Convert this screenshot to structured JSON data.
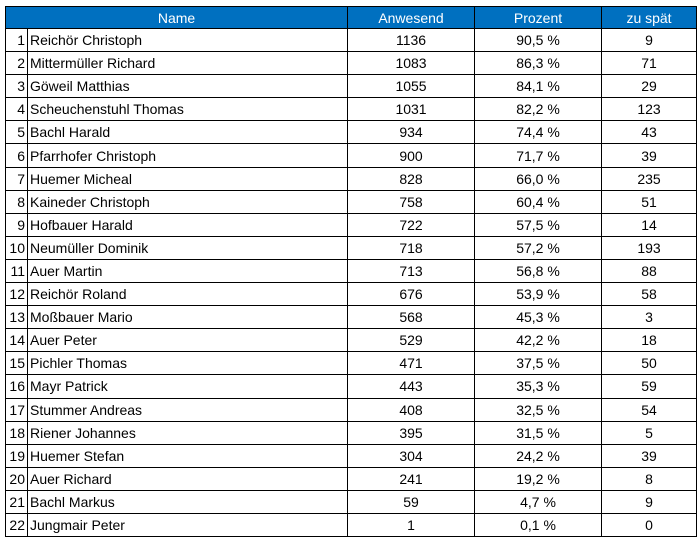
{
  "table": {
    "headers": [
      "Name",
      "Anwesend",
      "Prozent",
      "zu spät"
    ],
    "rows": [
      {
        "rank": "1",
        "name": "Reichör Christoph",
        "present": "1136",
        "percent": "90,5 %",
        "late": "9"
      },
      {
        "rank": "2",
        "name": "Mittermüller Richard",
        "present": "1083",
        "percent": "86,3 %",
        "late": "71"
      },
      {
        "rank": "3",
        "name": "Göweil Matthias",
        "present": "1055",
        "percent": "84,1 %",
        "late": "29"
      },
      {
        "rank": "4",
        "name": "Scheuchenstuhl Thomas",
        "present": "1031",
        "percent": "82,2 %",
        "late": "123"
      },
      {
        "rank": "5",
        "name": "Bachl Harald",
        "present": "934",
        "percent": "74,4 %",
        "late": "43"
      },
      {
        "rank": "6",
        "name": "Pfarrhofer Christoph",
        "present": "900",
        "percent": "71,7 %",
        "late": "39"
      },
      {
        "rank": "7",
        "name": "Huemer Micheal",
        "present": "828",
        "percent": "66,0 %",
        "late": "235"
      },
      {
        "rank": "8",
        "name": "Kaineder Christoph",
        "present": "758",
        "percent": "60,4 %",
        "late": "51"
      },
      {
        "rank": "9",
        "name": "Hofbauer Harald",
        "present": "722",
        "percent": "57,5 %",
        "late": "14"
      },
      {
        "rank": "10",
        "name": "Neumüller Dominik",
        "present": "718",
        "percent": "57,2 %",
        "late": "193"
      },
      {
        "rank": "11",
        "name": "Auer Martin",
        "present": "713",
        "percent": "56,8 %",
        "late": "88"
      },
      {
        "rank": "12",
        "name": "Reichör Roland",
        "present": "676",
        "percent": "53,9 %",
        "late": "58"
      },
      {
        "rank": "13",
        "name": "Moßbauer Mario",
        "present": "568",
        "percent": "45,3 %",
        "late": "3"
      },
      {
        "rank": "14",
        "name": "Auer Peter",
        "present": "529",
        "percent": "42,2 %",
        "late": "18"
      },
      {
        "rank": "15",
        "name": "Pichler Thomas",
        "present": "471",
        "percent": "37,5 %",
        "late": "50"
      },
      {
        "rank": "16",
        "name": "Mayr Patrick",
        "present": "443",
        "percent": "35,3 %",
        "late": "59"
      },
      {
        "rank": "17",
        "name": "Stummer Andreas",
        "present": "408",
        "percent": "32,5 %",
        "late": "54"
      },
      {
        "rank": "18",
        "name": "Riener Johannes",
        "present": "395",
        "percent": "31,5 %",
        "late": "5"
      },
      {
        "rank": "19",
        "name": "Huemer Stefan",
        "present": "304",
        "percent": "24,2 %",
        "late": "39"
      },
      {
        "rank": "20",
        "name": "Auer Richard",
        "present": "241",
        "percent": "19,2 %",
        "late": "8"
      },
      {
        "rank": "21",
        "name": "Bachl Markus",
        "present": "59",
        "percent": "4,7 %",
        "late": "9"
      },
      {
        "rank": "22",
        "name": "Jungmair Peter",
        "present": "1",
        "percent": "0,1 %",
        "late": "0"
      }
    ]
  },
  "colors": {
    "header_bg": "#0070c0",
    "header_text": "#ffffff",
    "grid": "#000000"
  }
}
